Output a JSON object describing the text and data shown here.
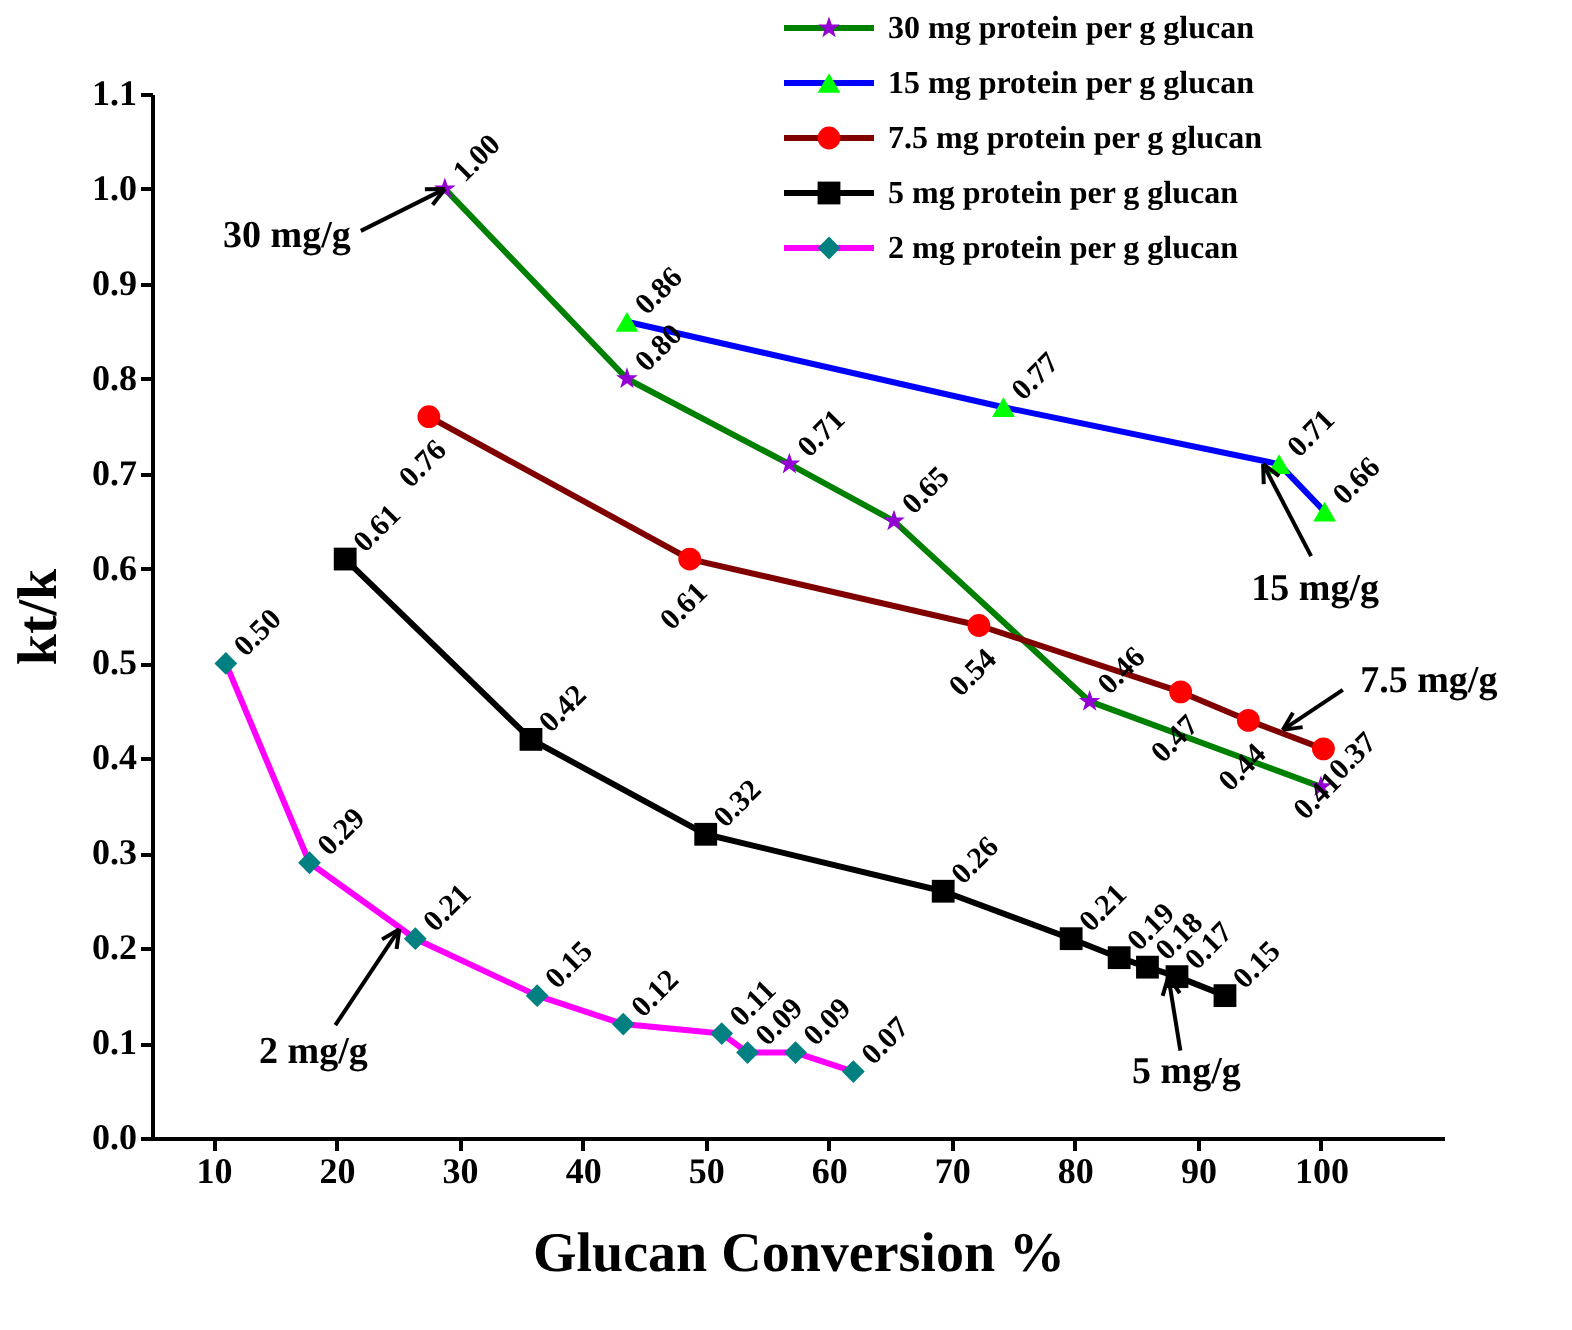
{
  "chart_data": {
    "type": "line",
    "xlabel": "Glucan Conversion %",
    "ylabel": "kt/k",
    "xlim": [
      5,
      110
    ],
    "ylim": [
      0,
      1.1
    ],
    "xticks": [
      10,
      20,
      30,
      40,
      50,
      60,
      70,
      80,
      90,
      100
    ],
    "yticks": [
      {
        "value": 0,
        "label": "0.0"
      },
      {
        "value": 0.1,
        "label": "0.1"
      },
      {
        "value": 0.2,
        "label": "0.2"
      },
      {
        "value": 0.3,
        "label": "0.3"
      },
      {
        "value": 0.4,
        "label": "0.4"
      },
      {
        "value": 0.5,
        "label": "0.5"
      },
      {
        "value": 0.6,
        "label": "0.6"
      },
      {
        "value": 0.7,
        "label": "0.7"
      },
      {
        "value": 0.8,
        "label": "0.8"
      },
      {
        "value": 0.9,
        "label": "0.9"
      },
      {
        "value": 1.0,
        "label": "1.0"
      },
      {
        "value": 1.1,
        "label": "1.1"
      }
    ],
    "grid": false,
    "legend": "top right",
    "series": [
      {
        "name": "30 mg protein per g glucan",
        "color": "#008000",
        "marker": "star",
        "colors": [
          "#9400d3",
          "#9400d3",
          "#9400d3",
          "#9400d3",
          "#9400d3",
          "#9400d3"
        ],
        "x": [
          28.8,
          43.6,
          56.8,
          65.3,
          81.2,
          100
        ],
        "values": [
          1.0,
          0.8,
          0.71,
          0.65,
          0.46,
          0.37
        ],
        "value_labels": [
          "1.00",
          "0.80",
          "0.71",
          "0.65",
          "0.46",
          "0.37"
        ]
      },
      {
        "name": "15 mg protein per g glucan",
        "color": "#0000ff",
        "marker": "triangle",
        "colors": [
          "#00ff00",
          "#00ff00",
          "#00ff00",
          "#00ff00"
        ],
        "x": [
          43.6,
          74.2,
          96.6,
          100.3
        ],
        "values": [
          0.86,
          0.77,
          0.71,
          0.66
        ],
        "value_labels": [
          "0.86",
          "0.77",
          "0.71",
          "0.66"
        ]
      },
      {
        "name": "7.5 mg protein per g glucan",
        "color": "#800000",
        "marker": "circle",
        "colors": [
          "#ff0000",
          "#ff0000",
          "#ff0000",
          "#ff0000",
          "#ff0000",
          "#ff0000"
        ],
        "x": [
          27.5,
          48.7,
          72.2,
          88.6,
          94.1,
          100.2
        ],
        "values": [
          0.76,
          0.61,
          0.54,
          0.47,
          0.44,
          0.41
        ],
        "value_labels": [
          "0.76",
          "0.61",
          "0.54",
          "0.47",
          "0.44",
          "0.41"
        ]
      },
      {
        "name": "5 mg protein per g glucan",
        "color": "#000000",
        "marker": "square",
        "colors": [
          "#000000",
          "#000000",
          "#000000",
          "#000000",
          "#000000",
          "#000000",
          "#000000",
          "#000000",
          "#000000"
        ],
        "x": [
          20.7,
          35.8,
          50.0,
          69.3,
          79.7,
          83.6,
          85.9,
          88.3,
          92.2
        ],
        "values": [
          0.61,
          0.42,
          0.32,
          0.26,
          0.21,
          0.19,
          0.18,
          0.17,
          0.15
        ],
        "value_labels": [
          "0.61",
          "0.42",
          "0.32",
          "0.26",
          "0.21",
          "0.19",
          "0.18",
          "0.17",
          "0.15"
        ]
      },
      {
        "name": "2 mg protein per g glucan",
        "color": "#ff00ff",
        "marker": "diamond",
        "colors": [
          "#008080",
          "#008080",
          "#008080",
          "#008080",
          "#008080",
          "#008080",
          "#008080",
          "#008080",
          "#008080"
        ],
        "x": [
          11.0,
          17.8,
          26.4,
          36.3,
          43.3,
          51.3,
          53.4,
          57.3,
          62.0
        ],
        "values": [
          0.5,
          0.29,
          0.21,
          0.15,
          0.12,
          0.11,
          0.09,
          0.09,
          0.07
        ],
        "value_labels": [
          "0.50",
          "0.29",
          "0.21",
          "0.15",
          "0.12",
          "0.11",
          "0.09",
          "0.09",
          "0.07"
        ]
      }
    ],
    "annotations": [
      {
        "text": "30 mg/g",
        "x": 28.8,
        "y": 1.0
      },
      {
        "text": "15 mg/g",
        "x": 95.3,
        "y": 0.71
      },
      {
        "text": "7.5 mg/g",
        "x": 96.9,
        "y": 0.43
      },
      {
        "text": "5 mg/g",
        "x": 87.6,
        "y": 0.17
      },
      {
        "text": "2 mg/g",
        "x": 25.1,
        "y": 0.22
      }
    ]
  }
}
